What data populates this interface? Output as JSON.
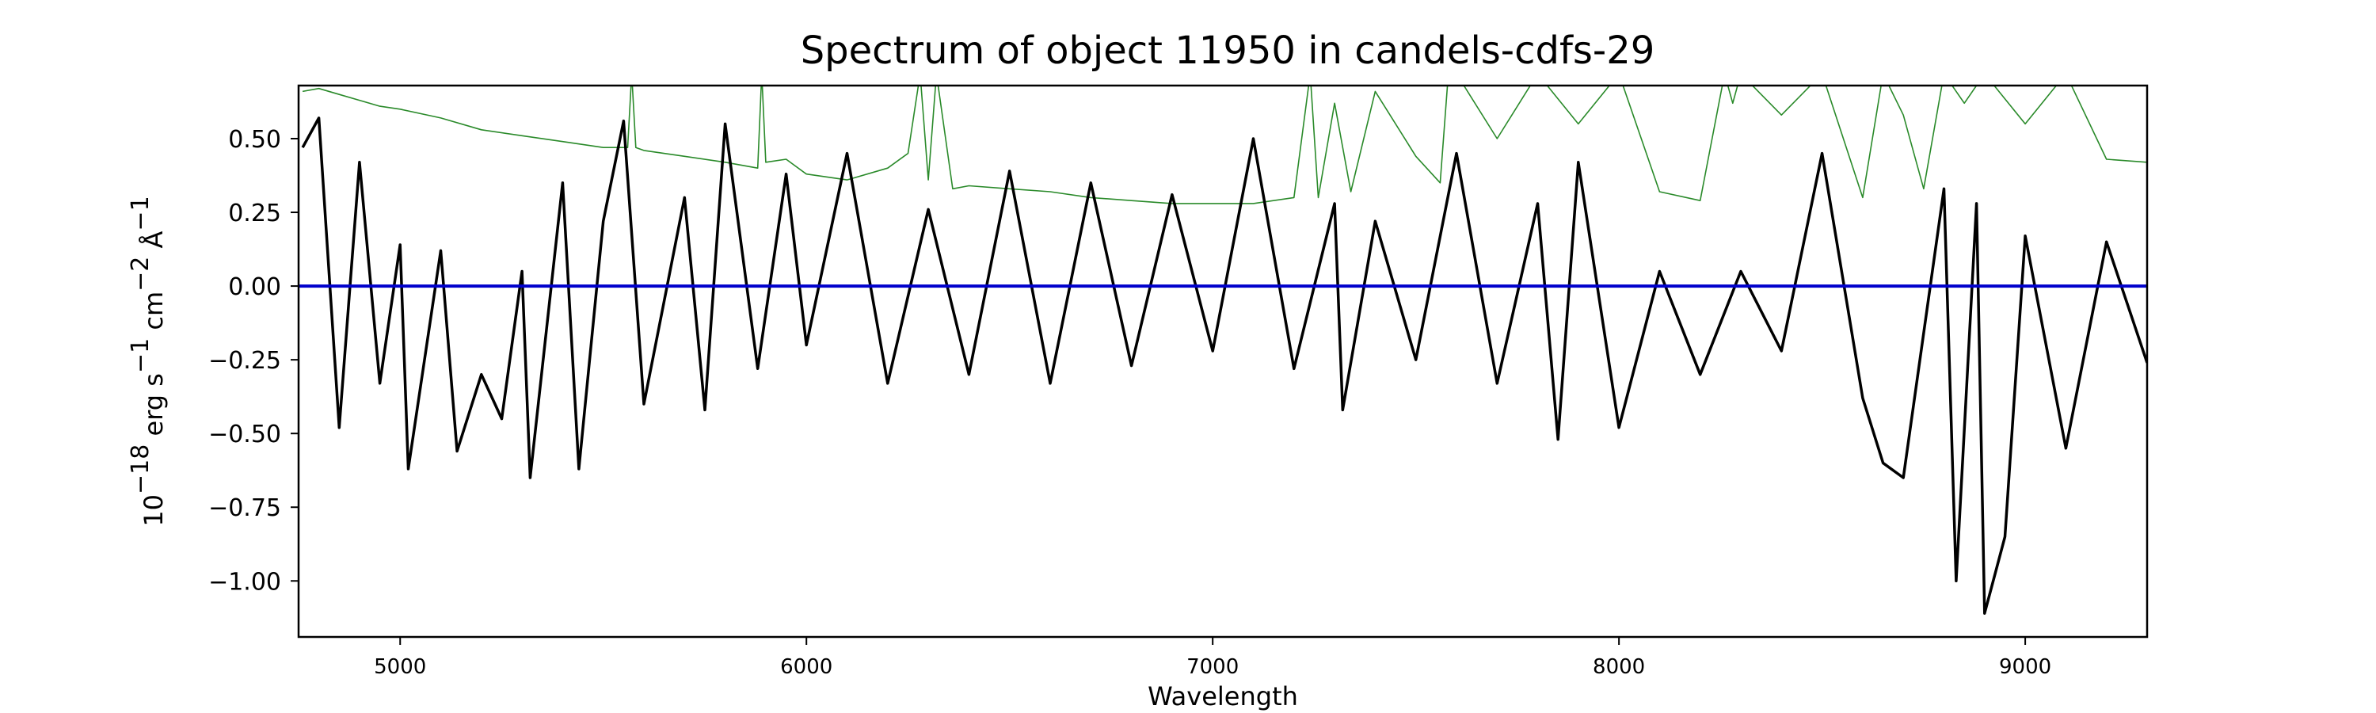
{
  "chart_data": {
    "type": "line",
    "title": "Spectrum of object 11950 in candels-cdfs-29",
    "xlabel": "Wavelength",
    "ylabel": {
      "base": "10",
      "exp": "−18",
      "unit1": " erg s",
      "exp1": "−1",
      "unit2": " cm",
      "exp2": "−2",
      "unit3": " Å",
      "exp3": "−1"
    },
    "xlim": [
      4750,
      9300
    ],
    "ylim": [
      -1.19,
      0.68
    ],
    "xticks": [
      5000,
      6000,
      7000,
      8000,
      9000
    ],
    "xtick_labels": [
      "5000",
      "6000",
      "7000",
      "8000",
      "9000"
    ],
    "yticks": [
      0.5,
      0.25,
      0.0,
      -0.25,
      -0.5,
      -0.75,
      -1.0
    ],
    "ytick_labels": [
      "0.50",
      "0.25",
      "0.00",
      "−0.25",
      "−0.50",
      "−0.75",
      "−1.00"
    ],
    "grid": false,
    "legend": "none",
    "series": [
      {
        "color": "#2a8a2a",
        "role": "error",
        "x": [
          4760,
          4800,
          4850,
          4900,
          4950,
          5000,
          5100,
          5200,
          5300,
          5400,
          5500,
          5560,
          5570,
          5580,
          5600,
          5700,
          5800,
          5880,
          5890,
          5900,
          5950,
          6000,
          6100,
          6200,
          6250,
          6280,
          6300,
          6320,
          6360,
          6400,
          6500,
          6600,
          6700,
          6800,
          6900,
          7000,
          7100,
          7200,
          7240,
          7260,
          7300,
          7340,
          7400,
          7500,
          7560,
          7580,
          7600,
          7700,
          7800,
          7900,
          8000,
          8100,
          8200,
          8260,
          8280,
          8300,
          8400,
          8500,
          8600,
          8650,
          8700,
          8750,
          8800,
          8850,
          8900,
          9000,
          9100,
          9200,
          9300
        ],
        "y": [
          0.66,
          0.67,
          0.65,
          0.63,
          0.61,
          0.6,
          0.57,
          0.53,
          0.51,
          0.49,
          0.47,
          0.47,
          0.72,
          0.47,
          0.46,
          0.44,
          0.42,
          0.4,
          0.72,
          0.42,
          0.43,
          0.38,
          0.36,
          0.4,
          0.45,
          0.72,
          0.36,
          0.72,
          0.33,
          0.34,
          0.33,
          0.32,
          0.3,
          0.29,
          0.28,
          0.28,
          0.28,
          0.3,
          0.72,
          0.3,
          0.62,
          0.32,
          0.66,
          0.44,
          0.35,
          0.72,
          0.72,
          0.5,
          0.72,
          0.55,
          0.72,
          0.32,
          0.29,
          0.72,
          0.62,
          0.72,
          0.58,
          0.72,
          0.3,
          0.72,
          0.58,
          0.33,
          0.72,
          0.62,
          0.72,
          0.55,
          0.72,
          0.43,
          0.42
        ]
      },
      {
        "color": "#000000",
        "role": "flux",
        "x": [
          4760,
          4800,
          4850,
          4900,
          4950,
          5000,
          5020,
          5100,
          5140,
          5200,
          5250,
          5300,
          5320,
          5400,
          5440,
          5500,
          5550,
          5600,
          5700,
          5750,
          5800,
          5880,
          5950,
          6000,
          6100,
          6200,
          6300,
          6400,
          6500,
          6600,
          6700,
          6800,
          6900,
          7000,
          7100,
          7200,
          7300,
          7320,
          7400,
          7500,
          7600,
          7700,
          7800,
          7850,
          7900,
          8000,
          8100,
          8200,
          8300,
          8400,
          8500,
          8600,
          8650,
          8700,
          8800,
          8830,
          8880,
          8900,
          8950,
          9000,
          9100,
          9200,
          9300
        ],
        "y": [
          0.47,
          0.57,
          -0.48,
          0.42,
          -0.33,
          0.14,
          -0.62,
          0.12,
          -0.56,
          -0.3,
          -0.45,
          0.05,
          -0.65,
          0.35,
          -0.62,
          0.22,
          0.56,
          -0.4,
          0.3,
          -0.42,
          0.55,
          -0.28,
          0.38,
          -0.2,
          0.45,
          -0.33,
          0.26,
          -0.3,
          0.39,
          -0.33,
          0.35,
          -0.27,
          0.31,
          -0.22,
          0.5,
          -0.28,
          0.28,
          -0.42,
          0.22,
          -0.25,
          0.45,
          -0.33,
          0.28,
          -0.52,
          0.42,
          -0.48,
          0.05,
          -0.3,
          0.05,
          -0.22,
          0.45,
          -0.38,
          -0.6,
          -0.65,
          0.33,
          -1.0,
          0.28,
          -1.11,
          -0.85,
          0.17,
          -0.55,
          0.15,
          -0.26
        ]
      },
      {
        "color": "#0000cc",
        "role": "model",
        "x": [
          4750,
          9300
        ],
        "y": [
          0.0,
          0.0
        ]
      }
    ]
  }
}
